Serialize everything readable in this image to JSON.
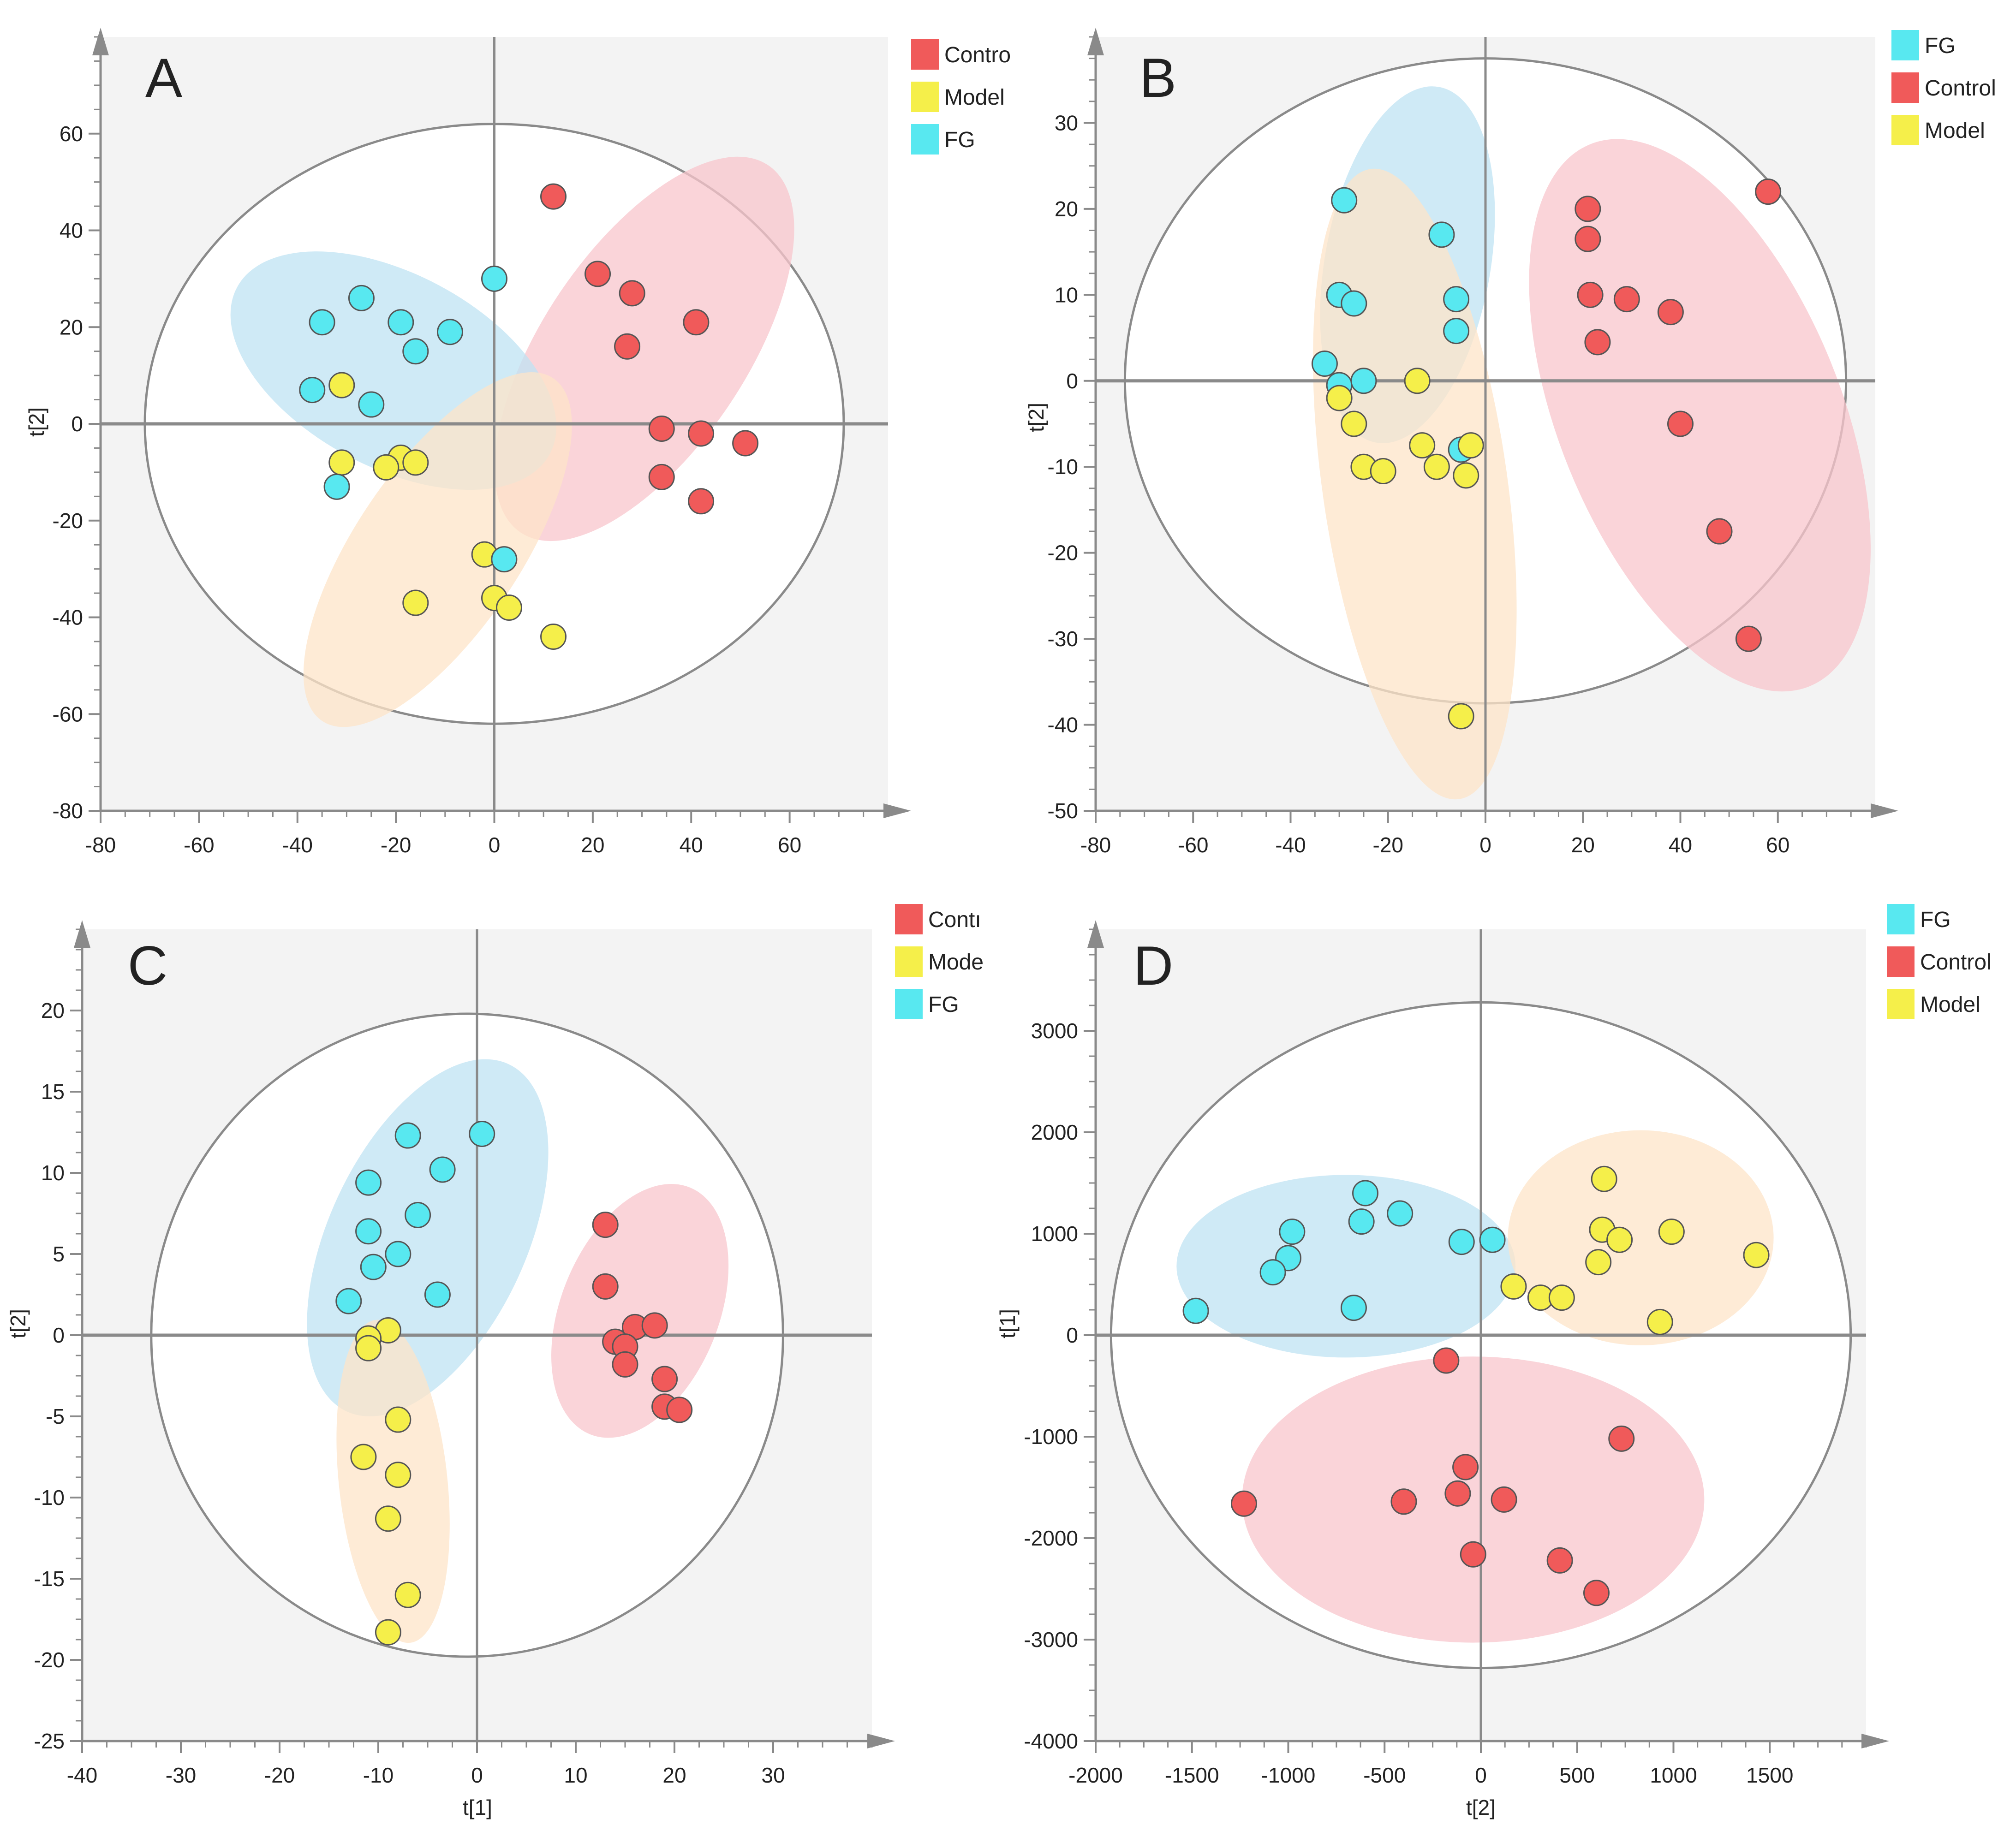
{
  "figure": {
    "colors": {
      "plot_bg": "#f3f3f3",
      "circle_bg": "#ffffff",
      "circle_stroke": "#8a8a8a",
      "axis": "#8a8a8a",
      "red": "#f05a5a",
      "red_ellipse": "#f8c6cc",
      "yellow": "#f5ef4a",
      "yellow_ellipse": "#fde4c8",
      "cyan": "#58e8f0",
      "cyan_ellipse": "#bfe3f3"
    }
  },
  "chart_data": [
    {
      "panel": "A",
      "type": "scatter",
      "xlabel": "",
      "ylabel": "t[2]",
      "xlim": [
        -80,
        80
      ],
      "ylim": [
        -80,
        80
      ],
      "xticks": [
        -80,
        -60,
        -40,
        -20,
        0,
        20,
        40,
        60
      ],
      "yticks": [
        -80,
        -60,
        -40,
        -20,
        0,
        20,
        40,
        60
      ],
      "xtick_labels": [
        "-80",
        "-60",
        "-40",
        "-20",
        "0",
        "20",
        "40",
        "60"
      ],
      "ytick_labels": [
        "-80",
        "-60",
        "-40",
        "-20",
        "0",
        "20",
        "40",
        "60"
      ],
      "legend": [
        {
          "label": "Contro",
          "color_key": "red"
        },
        {
          "label": "Model",
          "color_key": "yellow"
        },
        {
          "label": "FG",
          "color_key": "cyan"
        }
      ],
      "t2_ellipse": {
        "cx": 0,
        "cy": 0,
        "rx": 71,
        "ry": 62
      },
      "group_ellipses": [
        {
          "group": "red",
          "cx": 30.5,
          "cy": 15.5,
          "rx": 45,
          "ry": 21,
          "angle_deg": -56
        },
        {
          "group": "cyan",
          "cx": -20.5,
          "cy": 11,
          "rx": 36,
          "ry": 20,
          "angle_deg": 28
        },
        {
          "group": "yellow",
          "cx": -11.5,
          "cy": -26,
          "rx": 42,
          "ry": 17,
          "angle_deg": -56
        }
      ],
      "series": [
        {
          "name": "Contro",
          "color_key": "red",
          "points": [
            [
              12,
              47
            ],
            [
              21,
              31
            ],
            [
              28,
              27
            ],
            [
              41,
              21
            ],
            [
              27,
              16
            ],
            [
              34,
              -1
            ],
            [
              42,
              -2
            ],
            [
              51,
              -4
            ],
            [
              34,
              -11
            ],
            [
              42,
              -16
            ]
          ]
        },
        {
          "name": "Model",
          "color_key": "yellow",
          "points": [
            [
              -31,
              8
            ],
            [
              -31,
              -8
            ],
            [
              -19,
              -7
            ],
            [
              -22,
              -9
            ],
            [
              -16,
              -8
            ],
            [
              -2,
              -27
            ],
            [
              -16,
              -37
            ],
            [
              0,
              -36
            ],
            [
              3,
              -38
            ],
            [
              12,
              -44
            ]
          ]
        },
        {
          "name": "FG",
          "color_key": "cyan",
          "points": [
            [
              0,
              30
            ],
            [
              -27,
              26
            ],
            [
              -35,
              21
            ],
            [
              -19,
              21
            ],
            [
              -9,
              19
            ],
            [
              -16,
              15
            ],
            [
              -37,
              7
            ],
            [
              -25,
              4
            ],
            [
              -32,
              -13
            ],
            [
              2,
              -28
            ]
          ]
        }
      ]
    },
    {
      "panel": "B",
      "type": "scatter",
      "xlabel": "",
      "ylabel": "t[2]",
      "xlim": [
        -80,
        80
      ],
      "ylim": [
        -50,
        40
      ],
      "xticks": [
        -80,
        -60,
        -40,
        -20,
        0,
        20,
        40,
        60
      ],
      "yticks": [
        -50,
        -40,
        -30,
        -20,
        -10,
        0,
        10,
        20,
        30
      ],
      "xtick_labels": [
        "-80",
        "-60",
        "-40",
        "-20",
        "0",
        "20",
        "40",
        "60"
      ],
      "ytick_labels": [
        "-50",
        "-40",
        "-30",
        "-20",
        "-10",
        "0",
        "10",
        "20",
        "30"
      ],
      "legend": [
        {
          "label": "FG",
          "color_key": "cyan"
        },
        {
          "label": "Control",
          "color_key": "red"
        },
        {
          "label": "Model",
          "color_key": "yellow"
        }
      ],
      "t2_ellipse": {
        "cx": 0,
        "cy": 0,
        "rx": 74,
        "ry": 37.5
      },
      "group_ellipses": [
        {
          "group": "red",
          "cx": 44,
          "cy": -4,
          "rx": 29,
          "ry": 34,
          "angle_deg": -22
        },
        {
          "group": "cyan",
          "cx": -16,
          "cy": 13.5,
          "rx": 17,
          "ry": 21,
          "angle_deg": 10
        },
        {
          "group": "yellow",
          "cx": -14.5,
          "cy": -12,
          "rx": 19,
          "ry": 37,
          "angle_deg": -8
        }
      ],
      "series": [
        {
          "name": "FG",
          "color_key": "cyan",
          "points": [
            [
              -29,
              21
            ],
            [
              -9,
              17
            ],
            [
              -30,
              10
            ],
            [
              -27,
              9
            ],
            [
              -6,
              9.5
            ],
            [
              -6,
              5.8
            ],
            [
              -33,
              2
            ],
            [
              -30,
              -0.5
            ],
            [
              -25,
              0
            ],
            [
              -5,
              -8
            ]
          ]
        },
        {
          "name": "Control",
          "color_key": "red",
          "points": [
            [
              58,
              22
            ],
            [
              21,
              20
            ],
            [
              21,
              16.5
            ],
            [
              21.5,
              10
            ],
            [
              29,
              9.5
            ],
            [
              38,
              8
            ],
            [
              23,
              4.5
            ],
            [
              40,
              -5
            ],
            [
              48,
              -17.5
            ],
            [
              54,
              -30
            ]
          ]
        },
        {
          "name": "Model",
          "color_key": "yellow",
          "points": [
            [
              -14,
              0
            ],
            [
              -30,
              -2
            ],
            [
              -27,
              -5
            ],
            [
              -25,
              -10
            ],
            [
              -21,
              -10.5
            ],
            [
              -13,
              -7.5
            ],
            [
              -10,
              -10
            ],
            [
              -3,
              -7.5
            ],
            [
              -4,
              -11
            ],
            [
              -5,
              -39
            ]
          ]
        }
      ]
    },
    {
      "panel": "C",
      "type": "scatter",
      "xlabel": "t[1]",
      "ylabel": "t[2]",
      "xlim": [
        -40,
        40
      ],
      "ylim": [
        -25,
        25
      ],
      "xticks": [
        -40,
        -30,
        -20,
        -10,
        0,
        10,
        20,
        30
      ],
      "yticks": [
        -25,
        -20,
        -15,
        -10,
        -5,
        0,
        5,
        10,
        15,
        20
      ],
      "xtick_labels": [
        "-40",
        "-30",
        "-20",
        "-10",
        "0",
        "10",
        "20",
        "30"
      ],
      "ytick_labels": [
        "-25",
        "-20",
        "-15",
        "-10",
        "-5",
        "0",
        "5",
        "10",
        "15",
        "20"
      ],
      "legend": [
        {
          "label": "Contı",
          "color_key": "red"
        },
        {
          "label": "Mode",
          "color_key": "yellow"
        },
        {
          "label": "FG",
          "color_key": "cyan"
        }
      ],
      "t2_ellipse": {
        "cx": -1,
        "cy": 0,
        "rx": 32,
        "ry": 19.8
      },
      "group_ellipses": [
        {
          "group": "cyan",
          "cx": -5,
          "cy": 6,
          "rx": 10,
          "ry": 11.8,
          "angle_deg": 25
        },
        {
          "group": "red",
          "cx": 16.5,
          "cy": 1.5,
          "rx": 8,
          "ry": 8.2,
          "angle_deg": 22
        },
        {
          "group": "yellow",
          "cx": -8.5,
          "cy": -9,
          "rx": 5.5,
          "ry": 10,
          "angle_deg": -6
        }
      ],
      "series": [
        {
          "name": "Contı",
          "color_key": "red",
          "points": [
            [
              13,
              6.8
            ],
            [
              13,
              3
            ],
            [
              16,
              0.5
            ],
            [
              18,
              0.6
            ],
            [
              14,
              -0.4
            ],
            [
              15,
              -0.7
            ],
            [
              15,
              -1.8
            ],
            [
              19,
              -2.7
            ],
            [
              19,
              -4.4
            ],
            [
              20.5,
              -4.6
            ]
          ]
        },
        {
          "name": "Mode",
          "color_key": "yellow",
          "points": [
            [
              -9,
              0.3
            ],
            [
              -11,
              -0.2
            ],
            [
              -11,
              -0.8
            ],
            [
              -8,
              -5.2
            ],
            [
              -11.5,
              -7.5
            ],
            [
              -8,
              -8.6
            ],
            [
              -9,
              -11.3
            ],
            [
              -7,
              -16
            ],
            [
              -9,
              -18.3
            ]
          ]
        },
        {
          "name": "FG",
          "color_key": "cyan",
          "points": [
            [
              0.5,
              12.4
            ],
            [
              -7,
              12.3
            ],
            [
              -3.5,
              10.2
            ],
            [
              -11,
              9.4
            ],
            [
              -6,
              7.4
            ],
            [
              -11,
              6.4
            ],
            [
              -8,
              5
            ],
            [
              -10.5,
              4.2
            ],
            [
              -4,
              2.5
            ],
            [
              -13,
              2.1
            ]
          ]
        }
      ]
    },
    {
      "panel": "D",
      "type": "scatter",
      "xlabel": "t[2]",
      "ylabel": "t[1]",
      "xlim": [
        -2000,
        2000
      ],
      "ylim": [
        -4000,
        4000
      ],
      "xticks": [
        -2000,
        -1500,
        -1000,
        -500,
        0,
        500,
        1000,
        1500
      ],
      "yticks": [
        -4000,
        -3000,
        -2000,
        -1000,
        0,
        1000,
        2000,
        3000
      ],
      "xtick_labels": [
        "-2000",
        "-1500",
        "-1000",
        "-500",
        "0",
        "500",
        "1000",
        "1500"
      ],
      "ytick_labels": [
        "-4000",
        "-3000",
        "-2000",
        "-1000",
        "0",
        "1000",
        "2000",
        "3000"
      ],
      "legend": [
        {
          "label": "FG",
          "color_key": "cyan"
        },
        {
          "label": "Control",
          "color_key": "red"
        },
        {
          "label": "Model",
          "color_key": "yellow"
        }
      ],
      "t2_ellipse": {
        "cx": 0,
        "cy": 0,
        "rx": 1920,
        "ry": 3280
      },
      "group_ellipses": [
        {
          "group": "cyan",
          "cx": -700,
          "cy": 680,
          "rx": 880,
          "ry": 900,
          "angle_deg": 0
        },
        {
          "group": "yellow",
          "cx": 830,
          "cy": 960,
          "rx": 690,
          "ry": 1060,
          "angle_deg": 0
        },
        {
          "group": "red",
          "cx": -40,
          "cy": -1620,
          "rx": 1200,
          "ry": 1410,
          "angle_deg": 0
        }
      ],
      "series": [
        {
          "name": "FG",
          "color_key": "cyan",
          "points": [
            [
              -600,
              1400
            ],
            [
              -420,
              1200
            ],
            [
              -620,
              1120
            ],
            [
              -980,
              1020
            ],
            [
              -100,
              920
            ],
            [
              60,
              940
            ],
            [
              -1000,
              760
            ],
            [
              -1080,
              620
            ],
            [
              -660,
              270
            ],
            [
              -1480,
              240
            ]
          ]
        },
        {
          "name": "Control",
          "color_key": "red",
          "points": [
            [
              -180,
              -250
            ],
            [
              730,
              -1020
            ],
            [
              -80,
              -1300
            ],
            [
              -120,
              -1560
            ],
            [
              120,
              -1620
            ],
            [
              -400,
              -1640
            ],
            [
              -1230,
              -1660
            ],
            [
              -40,
              -2160
            ],
            [
              410,
              -2220
            ],
            [
              600,
              -2540
            ]
          ]
        },
        {
          "name": "Model",
          "color_key": "yellow",
          "points": [
            [
              640,
              1540
            ],
            [
              630,
              1040
            ],
            [
              720,
              940
            ],
            [
              990,
              1020
            ],
            [
              610,
              720
            ],
            [
              1430,
              790
            ],
            [
              170,
              480
            ],
            [
              310,
              370
            ],
            [
              420,
              370
            ],
            [
              930,
              130
            ]
          ]
        }
      ]
    }
  ]
}
